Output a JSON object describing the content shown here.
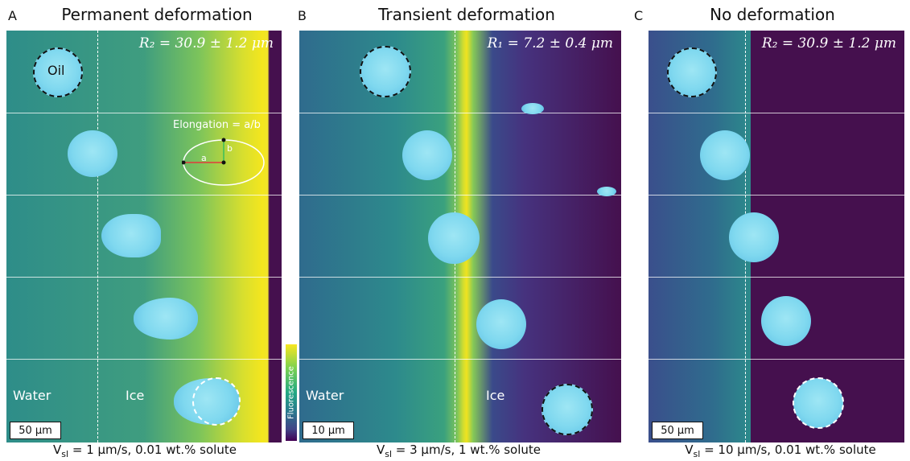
{
  "panels": [
    {
      "letter": "A",
      "title": "Permanent deformation",
      "radius": "R₂ = 30.9 ± 1.2 μm",
      "scale": "50 μm",
      "caption_v": "V",
      "caption_sub": "sl",
      "caption_rest": " = 1 μm/s, 0.01 wt.% solute",
      "water": "Water",
      "ice": "Ice",
      "droplet": "Oil"
    },
    {
      "letter": "B",
      "title": "Transient deformation",
      "radius": "R₁ = 7.2 ± 0.4 μm",
      "scale": "10 μm",
      "caption_v": "V",
      "caption_sub": "sl",
      "caption_rest": " = 3 μm/s, 1 wt.% solute",
      "water": "Water",
      "ice": "Ice"
    },
    {
      "letter": "C",
      "title": "No deformation",
      "radius": "R₂ = 30.9 ± 1.2 μm",
      "scale": "50 μm",
      "caption_v": "V",
      "caption_sub": "sl",
      "caption_rest": " = 10 μm/s, 0.01 wt.% solute"
    }
  ],
  "inset": {
    "label": "Elongation = a/b",
    "a": "a",
    "b": "b"
  },
  "colorbar_label": "Fluorescence",
  "colors": {
    "ice": "#45104e",
    "water": "#2a8a8a",
    "front": "#f4e61e",
    "droplet": "#8fdcf0"
  }
}
